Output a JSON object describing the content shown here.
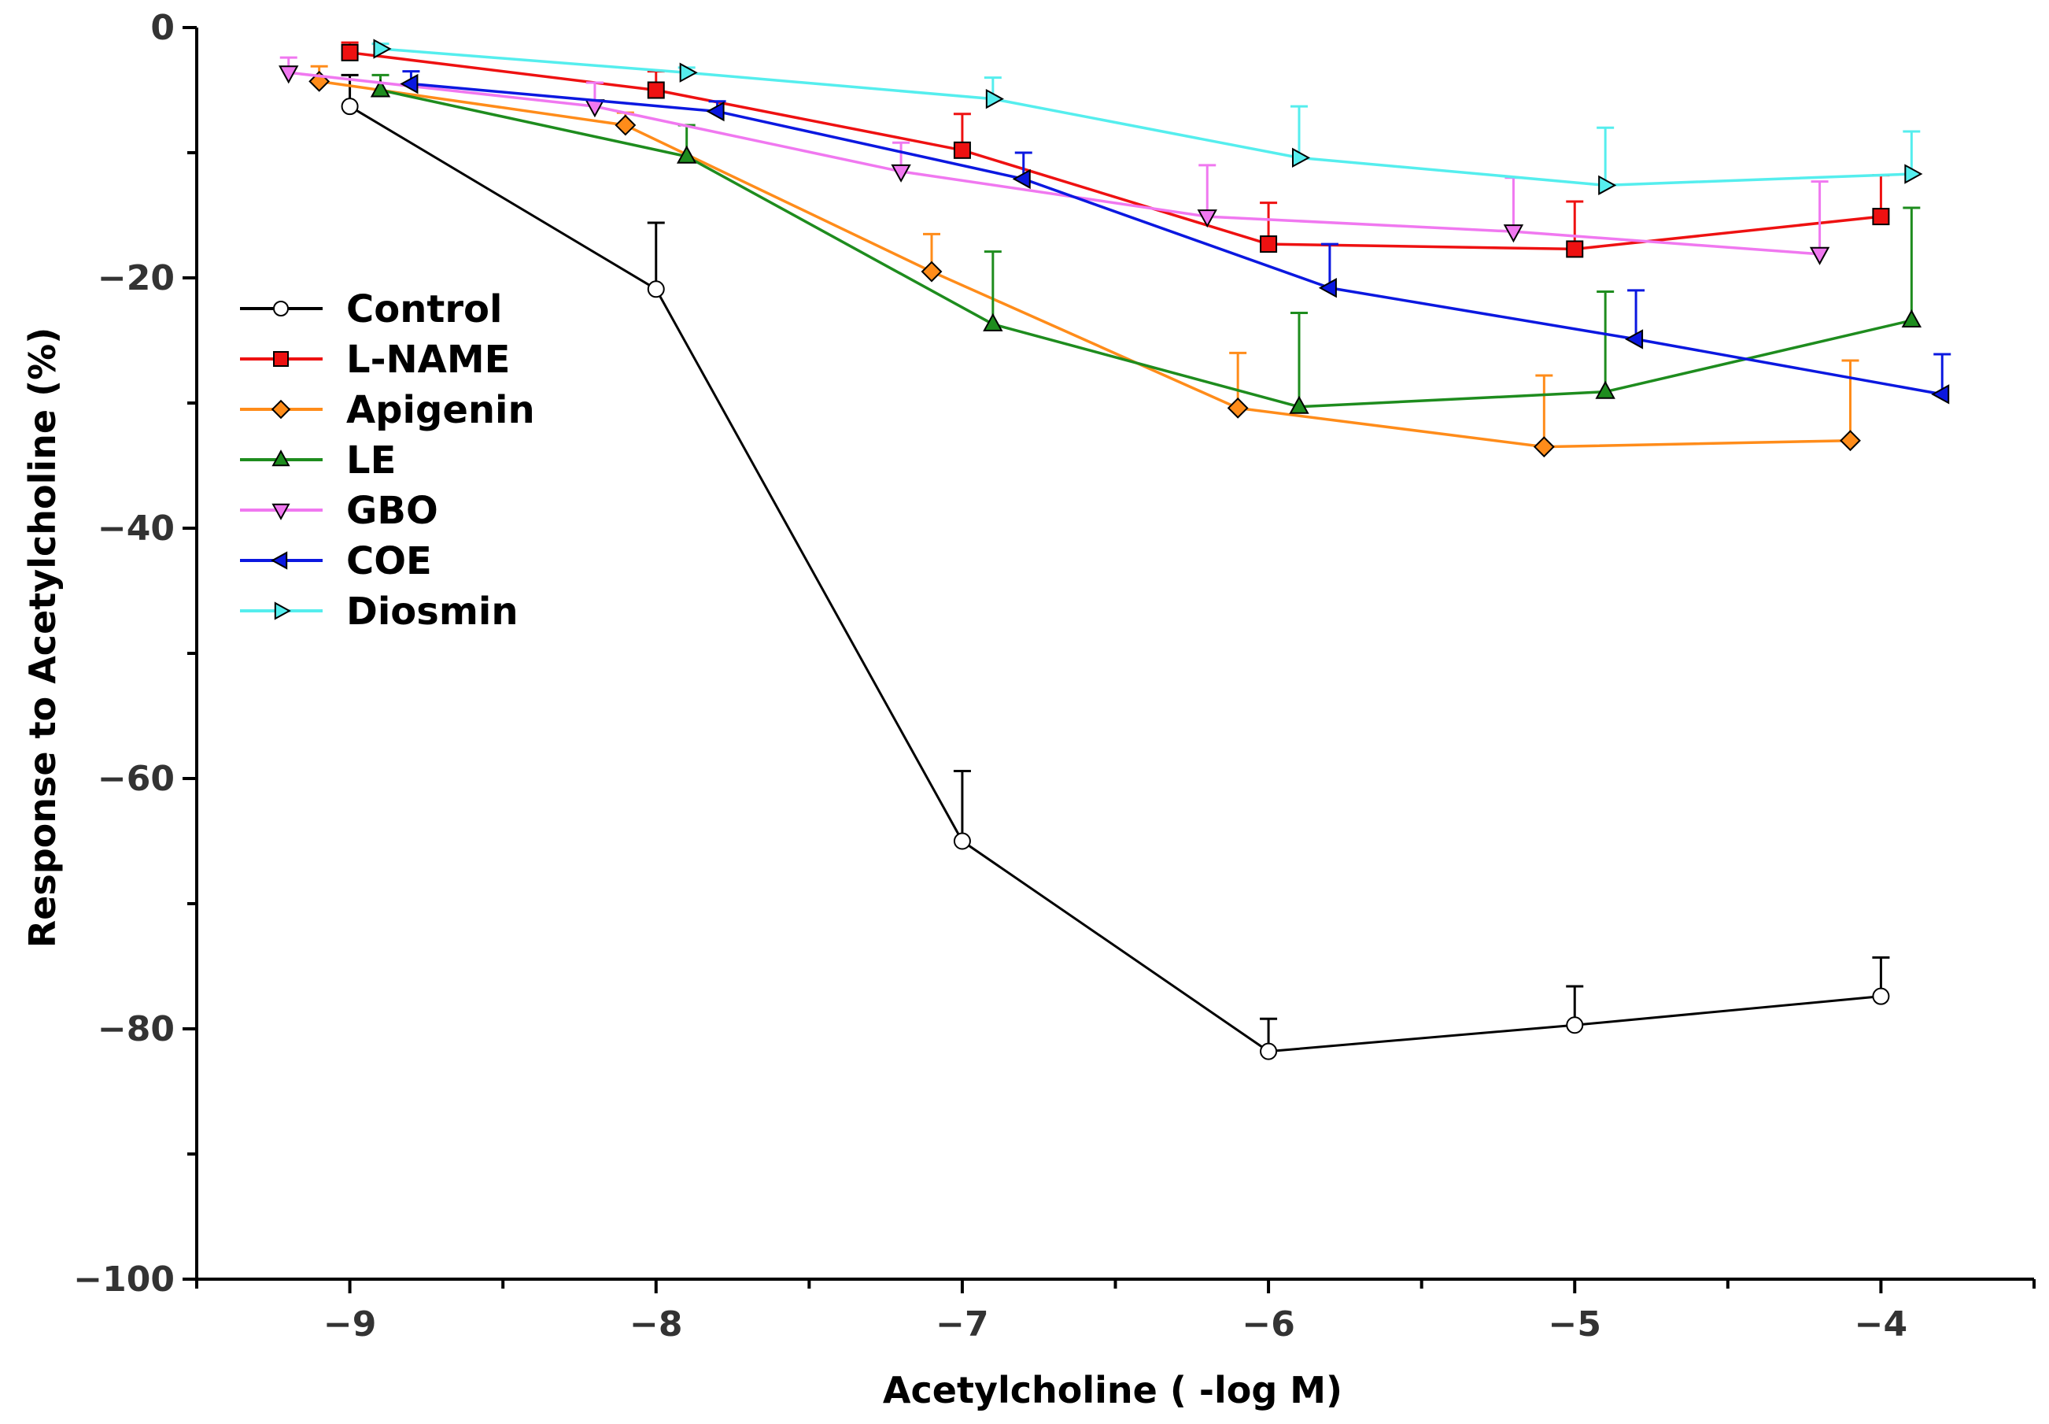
{
  "chart_data": {
    "type": "line",
    "title": "",
    "xlabel": "Acetylcholine ( -log M)",
    "ylabel": "Response to Acetylcholine (%)",
    "xlim": [
      -9.5,
      -3.5
    ],
    "ylim": [
      -100,
      0
    ],
    "xticks": [
      -9,
      -8,
      -7,
      -6,
      -5,
      -4
    ],
    "yticks": [
      0,
      -20,
      -40,
      -60,
      -80,
      -100
    ],
    "x_tick_labels": [
      "−9",
      "−8",
      "−7",
      "−6",
      "−5",
      "−4"
    ],
    "y_tick_labels": [
      "0",
      "−20",
      "−40",
      "−60",
      "−80",
      "−100"
    ],
    "y_minor_step": 10,
    "grid": false,
    "legend_position": "upper-left",
    "series": [
      {
        "name": "Control",
        "color": "#000000",
        "marker": "circle",
        "marker_fill": "#ffffff",
        "x": [
          -9,
          -8,
          -7,
          -6,
          -5,
          -4
        ],
        "y": [
          -6.3,
          -20.9,
          -65.0,
          -81.8,
          -79.7,
          -77.4
        ],
        "err": [
          2.5,
          5.3,
          5.6,
          2.6,
          3.1,
          3.1
        ]
      },
      {
        "name": "L-NAME",
        "color": "#ee1111",
        "marker": "square",
        "marker_fill": "#ee1111",
        "x": [
          -9,
          -8,
          -7,
          -6,
          -5,
          -4
        ],
        "y": [
          -2.0,
          -5.0,
          -9.8,
          -17.3,
          -17.7,
          -15.1
        ],
        "err": [
          0.8,
          1.5,
          2.9,
          3.3,
          3.8,
          3.3
        ]
      },
      {
        "name": "Apigenin",
        "color": "#ff8c1a",
        "marker": "diamond",
        "marker_fill": "#ff8c1a",
        "x": [
          -9.1,
          -8.1,
          -7.1,
          -6.1,
          -5.1,
          -4.1
        ],
        "y": [
          -4.3,
          -7.8,
          -19.5,
          -30.4,
          -33.5,
          -33.0
        ],
        "err": [
          1.2,
          1.0,
          3.0,
          4.4,
          5.7,
          6.4
        ]
      },
      {
        "name": "LE",
        "color": "#1e8c1e",
        "marker": "triangle-up",
        "marker_fill": "#1e8c1e",
        "x": [
          -8.9,
          -7.9,
          -6.9,
          -5.9,
          -4.9,
          -3.9
        ],
        "y": [
          -5.0,
          -10.3,
          -23.7,
          -30.3,
          -29.1,
          -23.4
        ],
        "err": [
          1.2,
          2.5,
          5.8,
          7.5,
          8.0,
          9.0
        ]
      },
      {
        "name": "GBO",
        "color": "#f078f0",
        "marker": "triangle-down",
        "marker_fill": "#f078f0",
        "x": [
          -9.2,
          -8.2,
          -7.2,
          -6.2,
          -5.2,
          -4.2
        ],
        "y": [
          -3.6,
          -6.3,
          -11.5,
          -15.1,
          -16.3,
          -18.1
        ],
        "err": [
          1.2,
          1.9,
          2.3,
          4.1,
          4.3,
          5.8
        ]
      },
      {
        "name": "COE",
        "color": "#0b18e0",
        "marker": "triangle-left",
        "marker_fill": "#0b18e0",
        "x": [
          -8.8,
          -7.8,
          -6.8,
          -5.8,
          -4.8,
          -3.8
        ],
        "y": [
          -4.5,
          -6.7,
          -12.1,
          -20.8,
          -24.9,
          -29.3
        ],
        "err": [
          1.0,
          0.8,
          2.1,
          3.5,
          3.9,
          3.2
        ]
      },
      {
        "name": "Diosmin",
        "color": "#55eeee",
        "marker": "triangle-right",
        "marker_fill": "#55eeee",
        "x": [
          -8.9,
          -7.9,
          -6.9,
          -5.9,
          -4.9,
          -3.9
        ],
        "y": [
          -1.7,
          -3.6,
          -5.7,
          -10.4,
          -12.6,
          -11.7
        ],
        "err": [
          0.4,
          0.4,
          1.7,
          4.1,
          4.6,
          3.4
        ]
      }
    ]
  }
}
